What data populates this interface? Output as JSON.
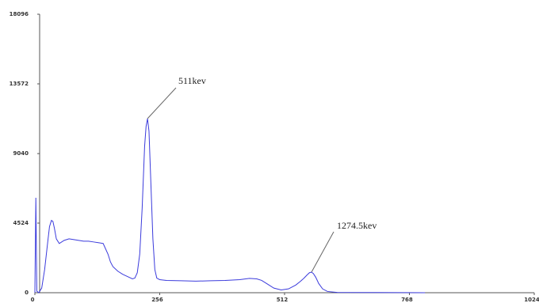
{
  "chart_data": {
    "type": "line",
    "x": [
      0,
      2,
      4,
      8,
      14,
      20,
      26,
      30,
      34,
      37,
      40,
      44,
      50,
      60,
      70,
      80,
      90,
      100,
      110,
      120,
      130,
      140,
      150,
      155,
      160,
      170,
      180,
      190,
      200,
      205,
      210,
      215,
      220,
      225,
      228,
      231,
      234,
      238,
      242,
      246,
      250,
      256,
      270,
      300,
      330,
      360,
      390,
      420,
      440,
      455,
      465,
      475,
      490,
      505,
      520,
      535,
      545,
      552,
      558,
      563,
      567,
      571,
      576,
      582,
      590,
      600,
      620,
      700,
      760,
      800
    ],
    "series": [
      {
        "color": "#3b3bdc",
        "values": [
          0,
          6170,
          100,
          0,
          300,
          1500,
          3200,
          4300,
          4700,
          4630,
          4200,
          3500,
          3200,
          3400,
          3500,
          3450,
          3400,
          3350,
          3350,
          3300,
          3250,
          3200,
          2500,
          2000,
          1700,
          1400,
          1200,
          1050,
          900,
          950,
          1300,
          2500,
          5500,
          9500,
          10800,
          11310,
          10500,
          7000,
          3500,
          1500,
          950,
          850,
          800,
          780,
          750,
          780,
          800,
          850,
          930,
          900,
          800,
          600,
          300,
          180,
          250,
          500,
          750,
          950,
          1150,
          1300,
          1337,
          1250,
          1000,
          600,
          250,
          80,
          20,
          10,
          5,
          0
        ]
      }
    ],
    "xlim": [
      0,
      1024
    ],
    "ylim": [
      0,
      18096
    ],
    "xticks": [
      0,
      256,
      512,
      768,
      1024
    ],
    "yticks": [
      0,
      4524,
      9040,
      13572,
      18096
    ],
    "annotations": [
      "511kev",
      "1274.5kev"
    ]
  }
}
